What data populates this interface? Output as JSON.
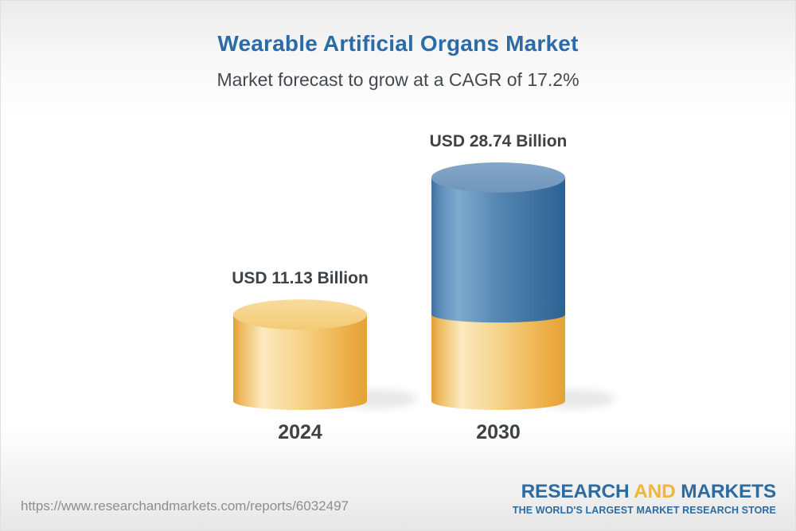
{
  "header": {
    "title": "Wearable Artificial Organs Market",
    "subtitle": "Market forecast to grow at a CAGR of 17.2%"
  },
  "chart_data": {
    "type": "bar",
    "subtype": "3d-cylinder-stacked",
    "title": "Wearable Artificial Organs Market",
    "subtitle": "Market forecast to grow at a CAGR of 17.2%",
    "cagr": "17.2%",
    "unit": "USD Billion",
    "categories": [
      "2024",
      "2030"
    ],
    "values": [
      11.13,
      28.74
    ],
    "value_labels": [
      "USD 11.13 Billion",
      "USD 28.74 Billion"
    ],
    "stacked_note": "2030 cylinder shows the 2024 value as a yellow base segment with blue growth segment above",
    "legend": "none",
    "axes": "none",
    "colors": {
      "bar_yellow": "#f2c571",
      "bar_blue": "#4a7caa",
      "label_dark": "#3d4247",
      "title_blue": "#2b6ca8",
      "subtitle_gray": "#45494e"
    }
  },
  "footer": {
    "url": "https://www.researchandmarkets.com/reports/6032497",
    "logo": {
      "part1": "RESEARCH",
      "part2": "AND",
      "part3": "MARKETS",
      "tagline": "THE WORLD'S LARGEST MARKET RESEARCH STORE",
      "blue": "#2d6ba0",
      "gold": "#efb63c"
    }
  }
}
